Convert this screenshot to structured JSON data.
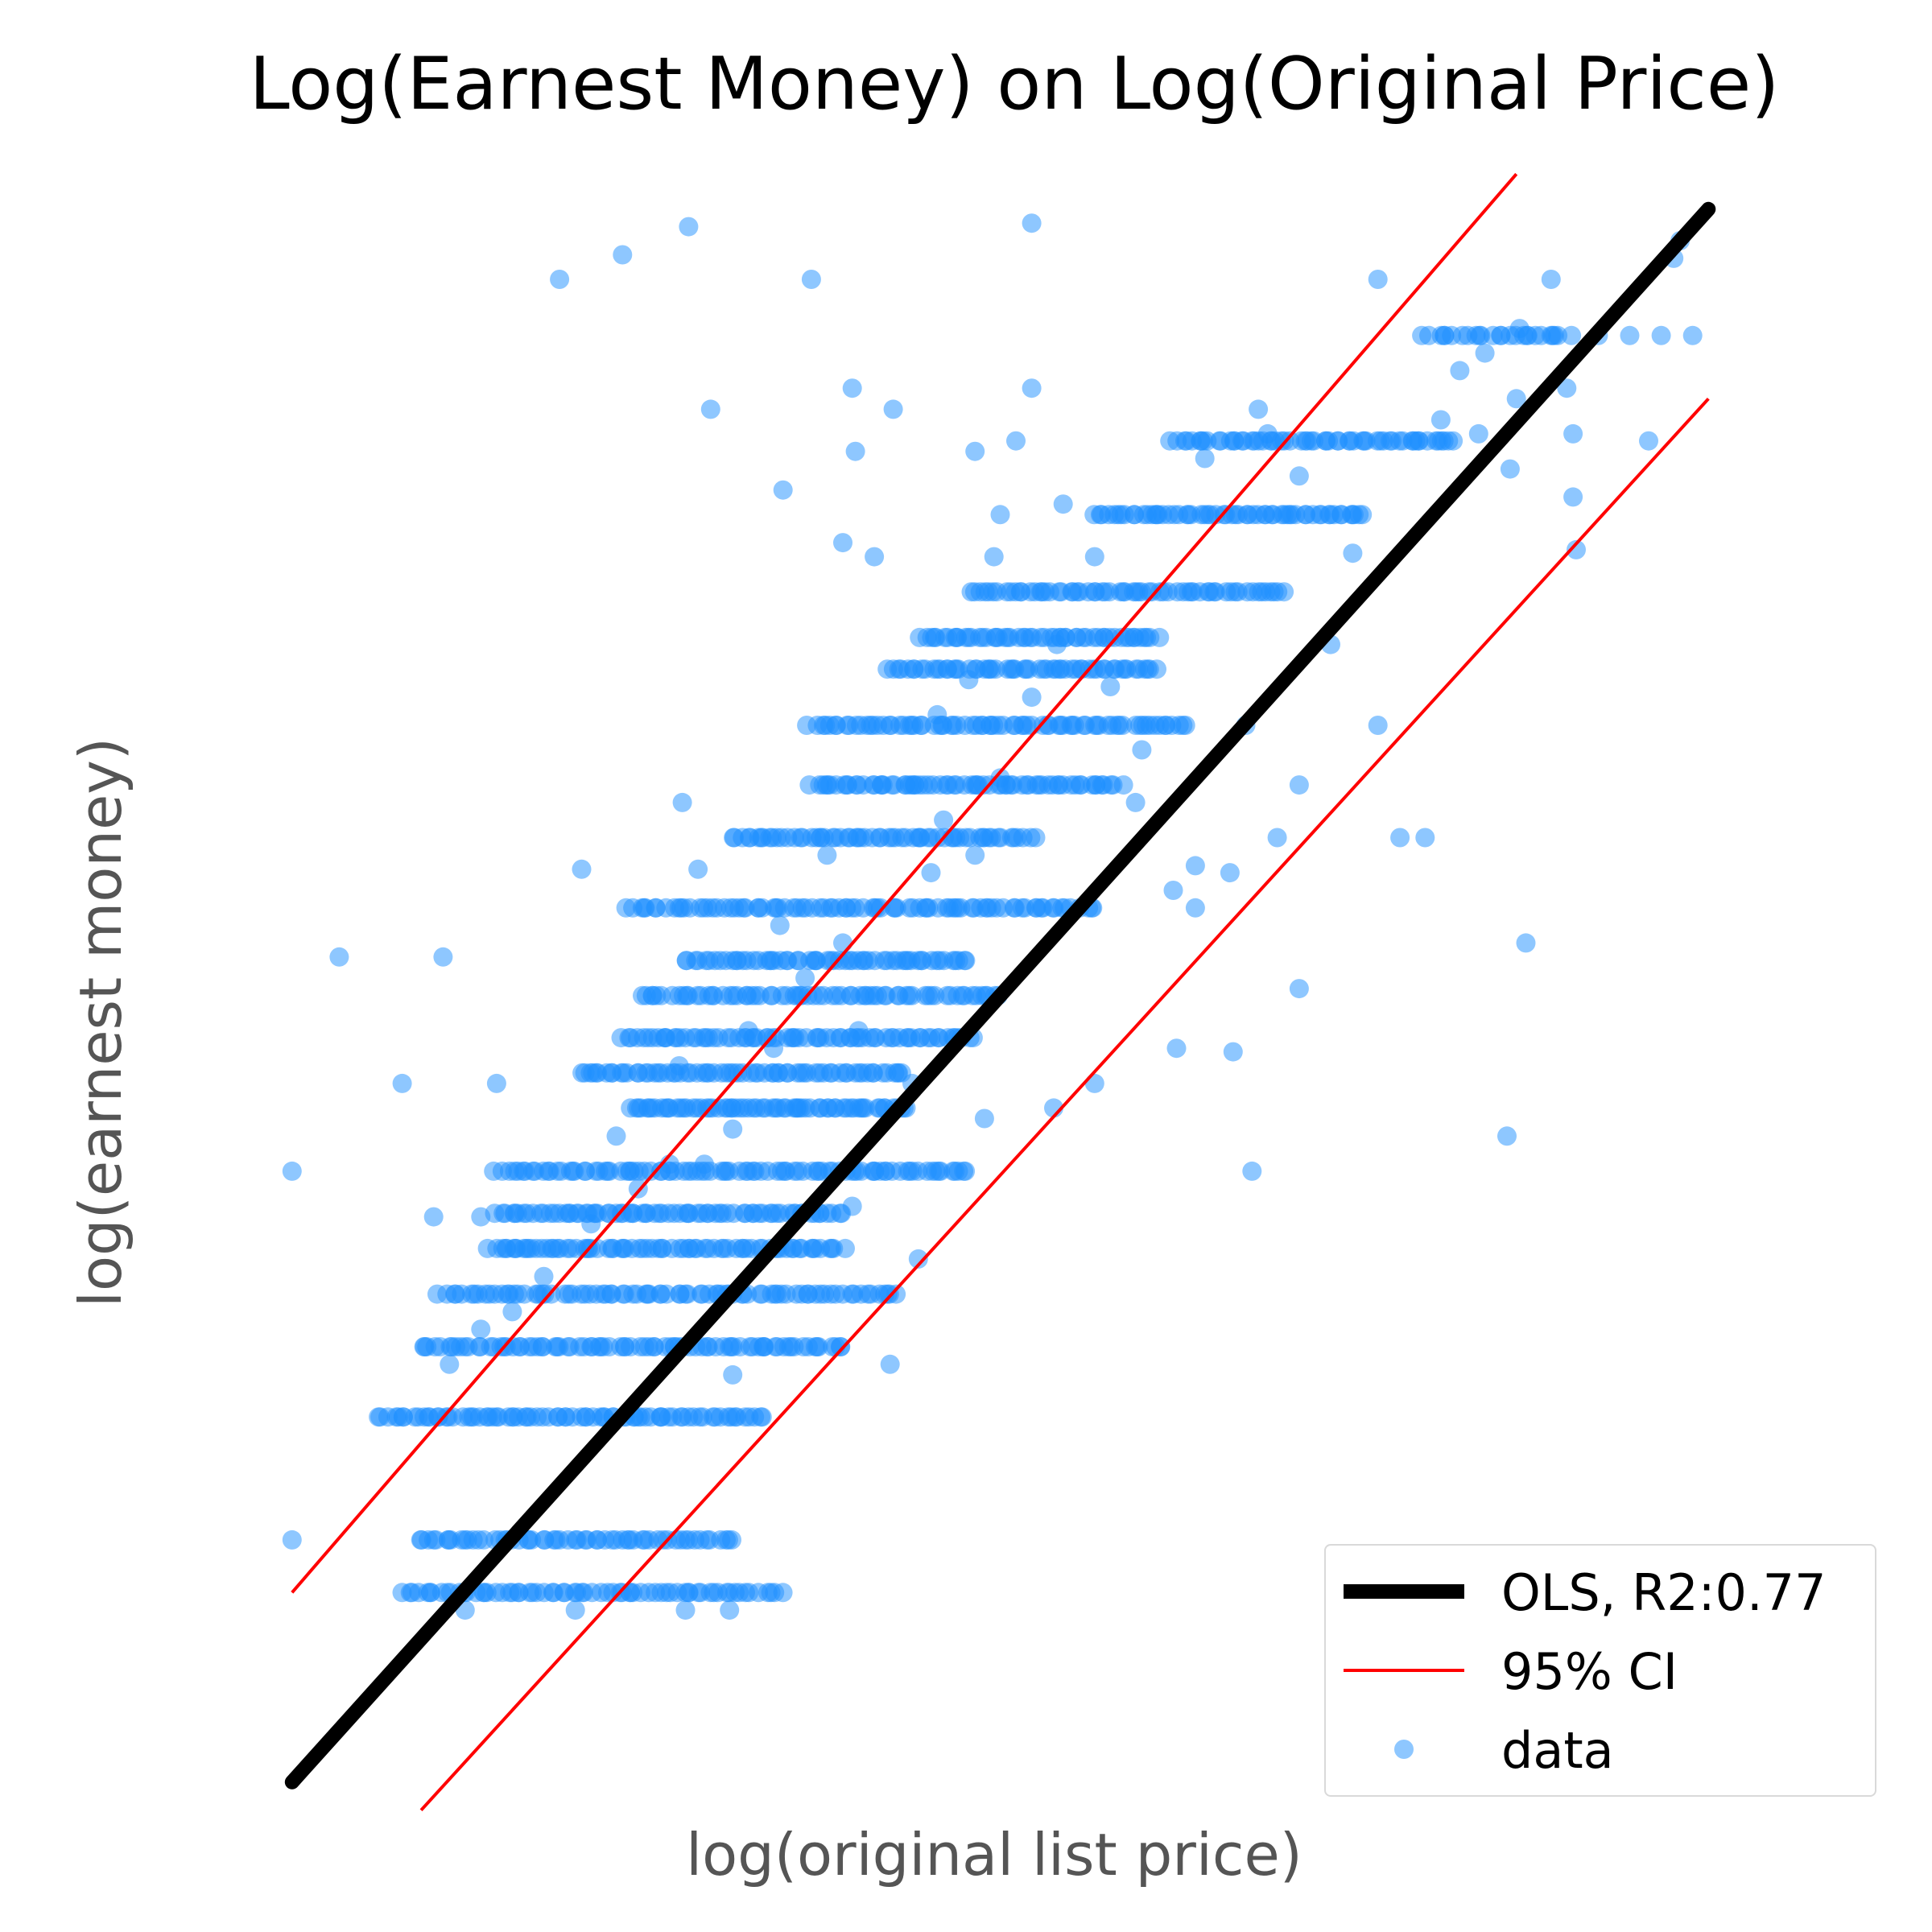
{
  "chart_data": {
    "type": "scatter",
    "title": "Log(Earnest Money) on Log(Original Price)",
    "xlabel": "log(original list price)",
    "ylabel": "log(earnest money)",
    "xlim": [
      10.4,
      15.4
    ],
    "ylim": [
      5.8,
      10.5
    ],
    "grid": false,
    "legend_position": "lower-right",
    "colors": {
      "data": "#1e90ff",
      "ols": "#000000",
      "ci": "#ff0000"
    },
    "series": [
      {
        "name": "OLS, R2:0.77",
        "kind": "line",
        "x": [
          10.65,
          15.15
        ],
        "y": [
          5.86,
          10.34
        ]
      },
      {
        "name": "95% CI",
        "kind": "line",
        "x": [
          10.65,
          14.54
        ],
        "y": [
          6.4,
          10.44
        ]
      },
      {
        "name": "95% CI",
        "kind": "line",
        "x": [
          11.06,
          15.15
        ],
        "y": [
          5.78,
          9.8
        ]
      },
      {
        "name": "data",
        "kind": "scatter",
        "bands": [
          {
            "y": 6.9,
            "xmin": 10.92,
            "xmax": 12.15,
            "n": 80
          },
          {
            "y": 6.4,
            "xmin": 11.0,
            "xmax": 12.2,
            "n": 70
          },
          {
            "y": 6.55,
            "xmin": 11.05,
            "xmax": 12.05,
            "n": 60
          },
          {
            "y": 7.1,
            "xmin": 11.06,
            "xmax": 12.4,
            "n": 85
          },
          {
            "y": 7.25,
            "xmin": 11.12,
            "xmax": 12.58,
            "n": 85
          },
          {
            "y": 7.38,
            "xmin": 11.28,
            "xmax": 12.4,
            "n": 75
          },
          {
            "y": 7.48,
            "xmin": 11.3,
            "xmax": 12.4,
            "n": 75
          },
          {
            "y": 7.6,
            "xmin": 11.3,
            "xmax": 12.8,
            "n": 95
          },
          {
            "y": 7.78,
            "xmin": 11.72,
            "xmax": 12.6,
            "n": 70
          },
          {
            "y": 7.88,
            "xmin": 11.56,
            "xmax": 12.6,
            "n": 70
          },
          {
            "y": 7.98,
            "xmin": 11.7,
            "xmax": 12.82,
            "n": 75
          },
          {
            "y": 8.1,
            "xmin": 11.75,
            "xmax": 12.9,
            "n": 70
          },
          {
            "y": 8.2,
            "xmin": 11.9,
            "xmax": 12.8,
            "n": 60
          },
          {
            "y": 8.35,
            "xmin": 11.72,
            "xmax": 13.2,
            "n": 90
          },
          {
            "y": 8.55,
            "xmin": 12.05,
            "xmax": 13.0,
            "n": 65
          },
          {
            "y": 8.7,
            "xmin": 12.3,
            "xmax": 13.28,
            "n": 70
          },
          {
            "y": 8.87,
            "xmin": 12.3,
            "xmax": 13.5,
            "n": 80
          },
          {
            "y": 9.03,
            "xmin": 12.55,
            "xmax": 13.4,
            "n": 60
          },
          {
            "y": 9.12,
            "xmin": 12.65,
            "xmax": 13.4,
            "n": 55
          },
          {
            "y": 9.25,
            "xmin": 12.8,
            "xmax": 13.8,
            "n": 65
          },
          {
            "y": 9.47,
            "xmin": 13.2,
            "xmax": 14.05,
            "n": 60
          },
          {
            "y": 9.68,
            "xmin": 13.45,
            "xmax": 14.35,
            "n": 60
          },
          {
            "y": 9.98,
            "xmin": 14.25,
            "xmax": 14.7,
            "n": 25
          }
        ],
        "points": [
          [
            10.65,
            6.55
          ],
          [
            11.91,
            10.29
          ],
          [
            11.7,
            10.21
          ],
          [
            11.5,
            10.14
          ],
          [
            13.0,
            10.3
          ],
          [
            12.3,
            10.14
          ],
          [
            14.65,
            10.14
          ],
          [
            14.1,
            10.14
          ],
          [
            15.06,
            10.25
          ],
          [
            15.04,
            10.2
          ],
          [
            11.94,
            8.46
          ],
          [
            11.89,
            8.65
          ],
          [
            11.98,
            9.77
          ],
          [
            12.44,
            9.65
          ],
          [
            12.56,
            9.77
          ],
          [
            12.43,
            9.83
          ],
          [
            12.21,
            9.54
          ],
          [
            12.4,
            9.39
          ],
          [
            12.5,
            9.35
          ],
          [
            13.0,
            9.83
          ],
          [
            11.57,
            8.46
          ],
          [
            11.13,
            8.21
          ],
          [
            10.8,
            8.21
          ],
          [
            10.65,
            7.6
          ],
          [
            11.0,
            7.85
          ],
          [
            11.25,
            7.47
          ],
          [
            11.36,
            7.38
          ],
          [
            11.4,
            7.38
          ],
          [
            11.3,
            7.85
          ],
          [
            11.1,
            7.47
          ],
          [
            12.04,
            6.35
          ],
          [
            11.9,
            6.35
          ],
          [
            11.55,
            6.35
          ],
          [
            11.2,
            6.35
          ],
          [
            12.64,
            7.35
          ],
          [
            12.55,
            7.05
          ],
          [
            13.64,
            7.94
          ],
          [
            14.51,
            7.7
          ],
          [
            14.57,
            8.25
          ],
          [
            14.72,
            9.52
          ],
          [
            14.7,
            9.83
          ],
          [
            14.96,
            9.68
          ],
          [
            14.73,
            9.37
          ],
          [
            14.54,
            9.8
          ],
          [
            14.42,
            9.7
          ],
          [
            14.36,
            9.88
          ],
          [
            14.44,
            9.93
          ],
          [
            14.52,
            9.6
          ],
          [
            14.72,
            9.7
          ],
          [
            14.55,
            10.0
          ],
          [
            15.1,
            9.98
          ],
          [
            15.0,
            9.98
          ],
          [
            14.9,
            9.98
          ],
          [
            14.8,
            9.98
          ],
          [
            14.65,
            9.98
          ],
          [
            14.22,
            9.68
          ],
          [
            14.3,
            9.74
          ],
          [
            14.02,
            9.36
          ],
          [
            13.95,
            9.1
          ],
          [
            14.1,
            8.87
          ],
          [
            14.17,
            8.55
          ],
          [
            14.25,
            8.55
          ],
          [
            13.85,
            8.7
          ],
          [
            13.68,
            8.87
          ],
          [
            13.78,
            8.55
          ],
          [
            13.63,
            8.45
          ],
          [
            13.52,
            8.35
          ],
          [
            13.52,
            8.47
          ],
          [
            13.45,
            8.4
          ],
          [
            13.46,
            7.95
          ],
          [
            13.2,
            7.85
          ],
          [
            13.07,
            7.78
          ],
          [
            12.85,
            7.75
          ],
          [
            13.7,
            7.6
          ],
          [
            13.85,
            8.12
          ],
          [
            13.35,
            8.8
          ],
          [
            13.33,
            8.65
          ],
          [
            13.25,
            8.98
          ],
          [
            13.2,
            9.35
          ],
          [
            13.1,
            9.5
          ],
          [
            12.9,
            9.47
          ],
          [
            12.82,
            9.65
          ],
          [
            12.88,
            9.35
          ],
          [
            12.95,
            9.68
          ],
          [
            13.72,
            9.77
          ],
          [
            13.75,
            9.7
          ],
          [
            13.82,
            9.47
          ],
          [
            13.85,
            9.58
          ],
          [
            14.05,
            9.47
          ],
          [
            13.55,
            9.63
          ],
          [
            11.5,
            7.38
          ],
          [
            11.6,
            7.45
          ],
          [
            11.75,
            6.9
          ],
          [
            11.3,
            6.9
          ],
          [
            12.05,
            7.02
          ],
          [
            12.15,
            7.1
          ],
          [
            12.0,
            7.25
          ],
          [
            12.43,
            7.5
          ],
          [
            12.5,
            7.6
          ],
          [
            12.62,
            7.85
          ],
          [
            12.5,
            8.1
          ],
          [
            12.45,
            8.0
          ],
          [
            12.6,
            8.2
          ],
          [
            12.68,
            8.45
          ],
          [
            12.72,
            8.6
          ],
          [
            12.35,
            8.5
          ],
          [
            12.2,
            8.3
          ],
          [
            12.1,
            8.0
          ],
          [
            11.88,
            7.9
          ],
          [
            11.85,
            7.62
          ],
          [
            11.75,
            7.55
          ],
          [
            11.68,
            7.7
          ],
          [
            11.62,
            7.48
          ],
          [
            11.45,
            7.3
          ],
          [
            11.35,
            7.2
          ],
          [
            11.25,
            7.15
          ],
          [
            11.15,
            7.05
          ],
          [
            12.75,
            8.35
          ],
          [
            12.82,
            8.5
          ],
          [
            12.9,
            8.72
          ],
          [
            12.7,
            8.9
          ],
          [
            12.6,
            8.7
          ],
          [
            12.8,
            9.0
          ],
          [
            13.0,
            8.95
          ],
          [
            13.08,
            9.1
          ],
          [
            11.96,
            7.62
          ],
          [
            12.05,
            7.72
          ],
          [
            12.18,
            7.95
          ],
          [
            12.28,
            8.15
          ],
          [
            12.4,
            8.25
          ]
        ]
      }
    ]
  },
  "legend": {
    "entries": [
      {
        "label": "OLS, R2:0.77",
        "kind": "thick-line",
        "color": "#000000"
      },
      {
        "label": "95% CI",
        "kind": "line",
        "color": "#ff0000"
      },
      {
        "label": "data",
        "kind": "marker",
        "color": "#1e90ff"
      }
    ]
  }
}
